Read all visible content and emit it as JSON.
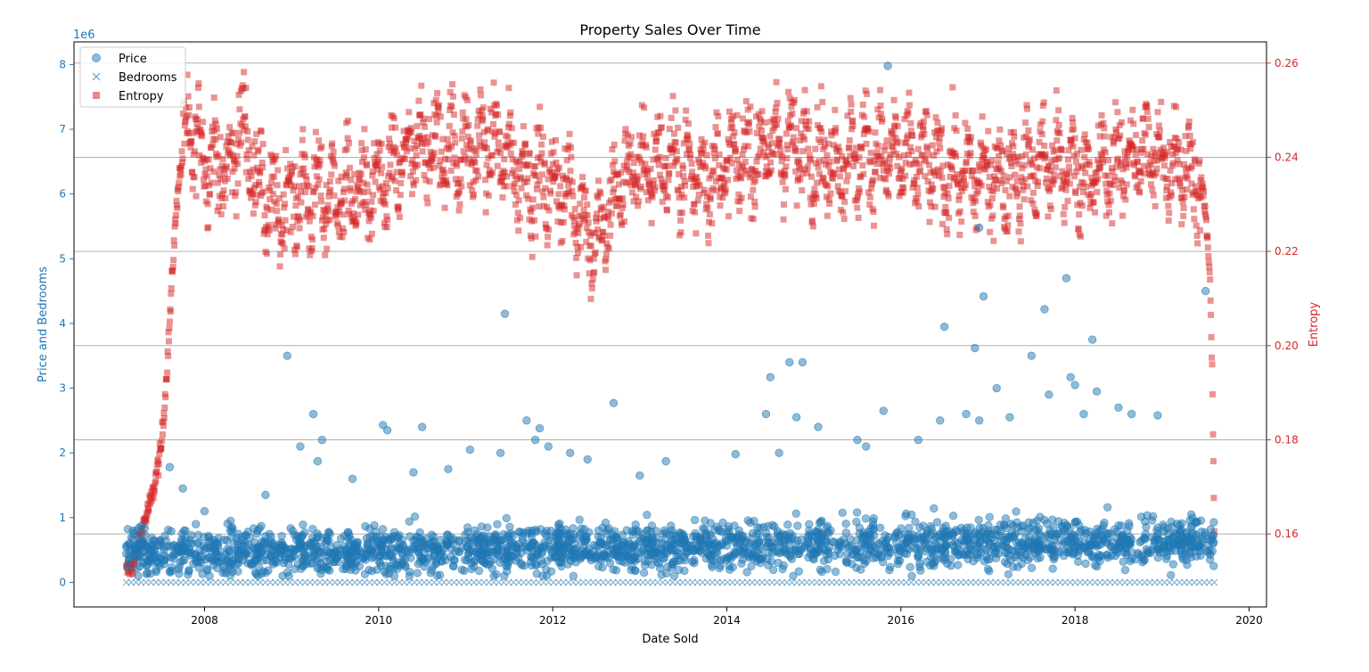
{
  "chart_data": {
    "type": "scatter",
    "title": "Property Sales Over Time",
    "xlabel": "Date Sold",
    "ylabel_left": "Price and Bedrooms",
    "ylabel_right": "Entropy",
    "left_axis_offset_label": "1e6",
    "xlim": [
      2006.5,
      2020.2
    ],
    "ylim_left": [
      -0.38,
      8.35
    ],
    "ylim_right": [
      0.1445,
      0.2645
    ],
    "x_ticks": [
      2008,
      2010,
      2012,
      2014,
      2016,
      2018,
      2020
    ],
    "y_ticks_left": [
      0,
      1,
      2,
      3,
      4,
      5,
      6,
      7,
      8
    ],
    "y_ticks_right": [
      0.16,
      0.18,
      0.2,
      0.22,
      0.24,
      0.26
    ],
    "y_tick_labels_right": [
      "0.16",
      "0.18",
      "0.20",
      "0.22",
      "0.24",
      "0.26"
    ],
    "grid": "horizontal lines on right axis",
    "legend_position": "top-left",
    "colors": {
      "price": "#1f77b4",
      "bedrooms": "#1f77b4",
      "entropy": "#d62728",
      "left_axis": "#1f77b4",
      "right_axis": "#d62728"
    },
    "series": [
      {
        "name": "Price",
        "marker": "circle",
        "axis": "left",
        "approx_dense_band": {
          "x_range": [
            2007.1,
            2019.6
          ],
          "y_range_millions": [
            0.1,
            1.3
          ]
        },
        "points": [
          [
            2007.2,
            0.53
          ],
          [
            2007.3,
            0.3
          ],
          [
            2007.6,
            1.78
          ],
          [
            2007.75,
            1.45
          ],
          [
            2007.9,
            0.9
          ],
          [
            2008.0,
            1.1
          ],
          [
            2008.3,
            0.95
          ],
          [
            2008.7,
            1.35
          ],
          [
            2008.95,
            3.5
          ],
          [
            2009.1,
            2.1
          ],
          [
            2009.25,
            2.6
          ],
          [
            2009.3,
            1.87
          ],
          [
            2009.35,
            2.2
          ],
          [
            2009.7,
            1.6
          ],
          [
            2010.05,
            2.43
          ],
          [
            2010.1,
            2.35
          ],
          [
            2010.4,
            1.7
          ],
          [
            2010.5,
            2.4
          ],
          [
            2011.05,
            2.05
          ],
          [
            2011.4,
            2.0
          ],
          [
            2011.45,
            4.15
          ],
          [
            2011.7,
            2.5
          ],
          [
            2011.8,
            2.2
          ],
          [
            2011.85,
            2.38
          ],
          [
            2011.95,
            2.1
          ],
          [
            2012.2,
            2.0
          ],
          [
            2012.4,
            1.9
          ],
          [
            2012.7,
            2.77
          ],
          [
            2013.3,
            1.87
          ],
          [
            2014.1,
            1.98
          ],
          [
            2014.45,
            2.6
          ],
          [
            2014.5,
            3.17
          ],
          [
            2014.6,
            2.0
          ],
          [
            2014.72,
            3.4
          ],
          [
            2014.8,
            2.55
          ],
          [
            2014.87,
            3.4
          ],
          [
            2015.05,
            2.4
          ],
          [
            2015.5,
            2.2
          ],
          [
            2015.8,
            2.65
          ],
          [
            2015.85,
            7.98
          ],
          [
            2016.2,
            2.2
          ],
          [
            2016.45,
            2.5
          ],
          [
            2016.5,
            3.95
          ],
          [
            2016.75,
            2.6
          ],
          [
            2016.85,
            3.62
          ],
          [
            2016.9,
            5.48
          ],
          [
            2016.95,
            4.42
          ],
          [
            2017.1,
            3.0
          ],
          [
            2017.25,
            2.55
          ],
          [
            2017.5,
            3.5
          ],
          [
            2017.65,
            4.22
          ],
          [
            2017.7,
            2.9
          ],
          [
            2017.9,
            4.7
          ],
          [
            2017.95,
            3.17
          ],
          [
            2018.0,
            3.05
          ],
          [
            2018.1,
            2.6
          ],
          [
            2018.2,
            3.75
          ],
          [
            2018.25,
            2.95
          ],
          [
            2018.5,
            2.7
          ],
          [
            2018.65,
            2.6
          ],
          [
            2018.95,
            2.58
          ],
          [
            2019.5,
            4.5
          ],
          [
            2016.9,
            2.5
          ],
          [
            2015.6,
            2.1
          ],
          [
            2013.0,
            1.65
          ],
          [
            2010.8,
            1.75
          ]
        ]
      },
      {
        "name": "Bedrooms",
        "marker": "x",
        "axis": "left",
        "approx_band": {
          "x_range": [
            2007.1,
            2019.6
          ],
          "y_value": 0.0
        }
      },
      {
        "name": "Entropy",
        "marker": "square",
        "axis": "right",
        "anchors": [
          [
            2007.1,
            0.152
          ],
          [
            2007.2,
            0.154
          ],
          [
            2007.3,
            0.162
          ],
          [
            2007.4,
            0.168
          ],
          [
            2007.5,
            0.178
          ],
          [
            2007.55,
            0.19
          ],
          [
            2007.6,
            0.205
          ],
          [
            2007.65,
            0.222
          ],
          [
            2007.7,
            0.235
          ],
          [
            2007.8,
            0.245
          ],
          [
            2008.0,
            0.241
          ],
          [
            2008.3,
            0.236
          ],
          [
            2008.4,
            0.248
          ],
          [
            2008.6,
            0.236
          ],
          [
            2008.8,
            0.228
          ],
          [
            2009.0,
            0.232
          ],
          [
            2009.5,
            0.232
          ],
          [
            2010.0,
            0.233
          ],
          [
            2010.5,
            0.243
          ],
          [
            2011.0,
            0.241
          ],
          [
            2011.3,
            0.243
          ],
          [
            2011.7,
            0.236
          ],
          [
            2012.2,
            0.233
          ],
          [
            2012.5,
            0.221
          ],
          [
            2012.8,
            0.236
          ],
          [
            2013.3,
            0.239
          ],
          [
            2013.8,
            0.236
          ],
          [
            2014.3,
            0.241
          ],
          [
            2014.7,
            0.243
          ],
          [
            2015.2,
            0.239
          ],
          [
            2015.7,
            0.241
          ],
          [
            2016.2,
            0.239
          ],
          [
            2016.7,
            0.236
          ],
          [
            2017.2,
            0.236
          ],
          [
            2017.7,
            0.239
          ],
          [
            2018.2,
            0.236
          ],
          [
            2018.7,
            0.241
          ],
          [
            2019.2,
            0.239
          ],
          [
            2019.45,
            0.235
          ],
          [
            2019.5,
            0.228
          ],
          [
            2019.55,
            0.215
          ],
          [
            2019.58,
            0.19
          ],
          [
            2019.6,
            0.16
          ]
        ]
      }
    ]
  }
}
